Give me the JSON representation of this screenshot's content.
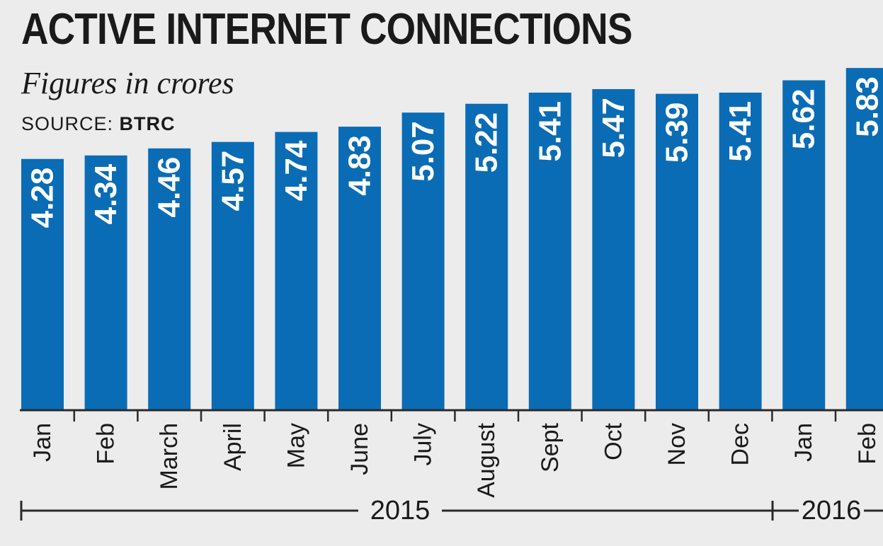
{
  "header": {
    "title": "ACTIVE INTERNET CONNECTIONS",
    "subtitle": "Figures in crores",
    "source_prefix": "SOURCE:",
    "source_name": "BTRC"
  },
  "colors": {
    "bar": "#0a6cb5",
    "label": "#ffffff",
    "axis": "#2a2a2a",
    "background": "#ececec"
  },
  "chart_data": {
    "type": "bar",
    "title": "ACTIVE INTERNET CONNECTIONS",
    "subtitle": "Figures in crores",
    "categories": [
      "Jan",
      "Feb",
      "March",
      "April",
      "May",
      "June",
      "July",
      "August",
      "Sept",
      "Oct",
      "Nov",
      "Dec",
      "Jan",
      "Feb"
    ],
    "values": [
      4.28,
      4.34,
      4.46,
      4.57,
      4.74,
      4.83,
      5.07,
      5.22,
      5.41,
      5.47,
      5.39,
      5.41,
      5.62,
      5.83
    ],
    "value_labels": [
      "4.28",
      "4.34",
      "4.46",
      "4.57",
      "4.74",
      "4.83",
      "5.07",
      "5.22",
      "5.41",
      "5.47",
      "5.39",
      "5.41",
      "5.62",
      "5.83"
    ],
    "year_groups": [
      {
        "label": "2015",
        "start_index": 0,
        "end_index": 11
      },
      {
        "label": "2016",
        "start_index": 12,
        "end_index": 13
      }
    ],
    "ylim": [
      0,
      6
    ],
    "grid": false,
    "legend": "none",
    "xlabel": "",
    "ylabel": ""
  }
}
